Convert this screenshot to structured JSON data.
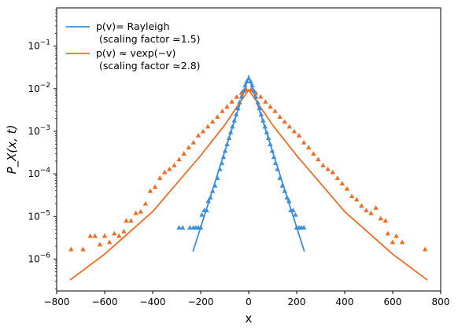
{
  "chart_data": {
    "type": "scatter",
    "xlabel": "x",
    "ylabel": "P_X(x, t)",
    "xlim": [
      -800,
      800
    ],
    "ylim_log10": [
      -6.75,
      -0.1
    ],
    "y_scale": "log",
    "grid": false,
    "legend_position": "top-left",
    "x_ticks": [
      -800,
      -600,
      -400,
      -200,
      0,
      200,
      400,
      600,
      800
    ],
    "x_tick_labels": [
      "−800",
      "−600",
      "−400",
      "−200",
      "0",
      "200",
      "400",
      "600",
      "800"
    ],
    "y_ticks_exp": [
      -6,
      -5,
      -4,
      -3,
      -2,
      -1
    ],
    "y_tick_labels": [
      {
        "base": "10",
        "exp": "−6"
      },
      {
        "base": "10",
        "exp": "−5"
      },
      {
        "base": "10",
        "exp": "−4"
      },
      {
        "base": "10",
        "exp": "−3"
      },
      {
        "base": "10",
        "exp": "−2"
      },
      {
        "base": "10",
        "exp": "−1"
      }
    ],
    "series": [
      {
        "name_line1": "p(v)= Rayleigh",
        "name_line2": "(scaling factor ≃1.5)",
        "color": "#3a8ee0",
        "fit_line": [
          [
            -232,
            1.5e-06
          ],
          [
            0,
            0.0195
          ],
          [
            232,
            1.5e-06
          ]
        ],
        "points": [
          [
            -290,
            5.5e-06
          ],
          [
            -275,
            5.5e-06
          ],
          [
            -245,
            5.5e-06
          ],
          [
            -230,
            5.5e-06
          ],
          [
            -220,
            5.5e-06
          ],
          [
            -210,
            5.5e-06
          ],
          [
            -200,
            5.5e-06
          ],
          [
            -195,
            1.1e-05
          ],
          [
            -185,
            1.4e-05
          ],
          [
            -175,
            1.4e-05
          ],
          [
            -168,
            2.3e-05
          ],
          [
            -160,
            2.8e-05
          ],
          [
            -150,
            4e-05
          ],
          [
            -140,
            5.3e-05
          ],
          [
            -130,
            8e-05
          ],
          [
            -120,
            0.00013
          ],
          [
            -112,
            0.00018
          ],
          [
            -105,
            0.00025
          ],
          [
            -98,
            0.00035
          ],
          [
            -90,
            0.0005
          ],
          [
            -82,
            0.0007
          ],
          [
            -75,
            0.00095
          ],
          [
            -68,
            0.0013
          ],
          [
            -60,
            0.0018
          ],
          [
            -52,
            0.0025
          ],
          [
            -45,
            0.0035
          ],
          [
            -38,
            0.0048
          ],
          [
            -30,
            0.0065
          ],
          [
            -22,
            0.009
          ],
          [
            -15,
            0.012
          ],
          [
            -8,
            0.015
          ],
          [
            0,
            0.0175
          ],
          [
            8,
            0.015
          ],
          [
            15,
            0.012
          ],
          [
            22,
            0.009
          ],
          [
            30,
            0.0065
          ],
          [
            38,
            0.0048
          ],
          [
            45,
            0.0035
          ],
          [
            52,
            0.0025
          ],
          [
            60,
            0.0018
          ],
          [
            68,
            0.0013
          ],
          [
            75,
            0.00095
          ],
          [
            82,
            0.0007
          ],
          [
            90,
            0.0005
          ],
          [
            98,
            0.00035
          ],
          [
            105,
            0.00025
          ],
          [
            112,
            0.00018
          ],
          [
            120,
            0.00013
          ],
          [
            130,
            8e-05
          ],
          [
            140,
            5.3e-05
          ],
          [
            150,
            4e-05
          ],
          [
            160,
            2.8e-05
          ],
          [
            168,
            2.3e-05
          ],
          [
            175,
            1.4e-05
          ],
          [
            185,
            1.4e-05
          ],
          [
            195,
            1.1e-05
          ],
          [
            200,
            5.5e-06
          ],
          [
            210,
            5.5e-06
          ],
          [
            220,
            5.5e-06
          ],
          [
            230,
            5.5e-06
          ]
        ]
      },
      {
        "name_line1": "p(v) ≈ vexp(−v)",
        "name_line2": "(scaling factor ≃2.8)",
        "color": "#f26b21",
        "fit_line": [
          [
            -745,
            3.2e-07
          ],
          [
            -600,
            1.3e-06
          ],
          [
            -400,
            1.3e-05
          ],
          [
            -200,
            0.00027
          ],
          [
            -100,
            0.0014
          ],
          [
            0,
            0.0095
          ],
          [
            100,
            0.0014
          ],
          [
            200,
            0.00027
          ],
          [
            400,
            1.3e-05
          ],
          [
            600,
            1.3e-06
          ],
          [
            745,
            3.2e-07
          ]
        ],
        "points": [
          [
            -740,
            1.7e-06
          ],
          [
            -690,
            1.7e-06
          ],
          [
            -660,
            3.5e-06
          ],
          [
            -640,
            3.5e-06
          ],
          [
            -620,
            2.2e-06
          ],
          [
            -600,
            3.5e-06
          ],
          [
            -580,
            2.5e-06
          ],
          [
            -560,
            4e-06
          ],
          [
            -540,
            3.5e-06
          ],
          [
            -520,
            4.5e-06
          ],
          [
            -510,
            8e-06
          ],
          [
            -490,
            8e-06
          ],
          [
            -470,
            1.2e-05
          ],
          [
            -450,
            1.3e-05
          ],
          [
            -430,
            2e-05
          ],
          [
            -410,
            4e-05
          ],
          [
            -390,
            5e-05
          ],
          [
            -370,
            8e-05
          ],
          [
            -350,
            0.00011
          ],
          [
            -330,
            0.00013
          ],
          [
            -310,
            0.00016
          ],
          [
            -290,
            0.00022
          ],
          [
            -270,
            0.0003
          ],
          [
            -250,
            0.00042
          ],
          [
            -230,
            0.00055
          ],
          [
            -210,
            0.0008
          ],
          [
            -190,
            0.001
          ],
          [
            -170,
            0.0013
          ],
          [
            -150,
            0.0017
          ],
          [
            -130,
            0.0022
          ],
          [
            -110,
            0.003
          ],
          [
            -90,
            0.0038
          ],
          [
            -70,
            0.005
          ],
          [
            -50,
            0.0065
          ],
          [
            -30,
            0.008
          ],
          [
            -10,
            0.0095
          ],
          [
            10,
            0.0095
          ],
          [
            30,
            0.008
          ],
          [
            50,
            0.0065
          ],
          [
            70,
            0.005
          ],
          [
            90,
            0.0038
          ],
          [
            110,
            0.003
          ],
          [
            130,
            0.0022
          ],
          [
            150,
            0.0017
          ],
          [
            170,
            0.0013
          ],
          [
            190,
            0.001
          ],
          [
            210,
            0.0008
          ],
          [
            230,
            0.00055
          ],
          [
            250,
            0.00042
          ],
          [
            270,
            0.0003
          ],
          [
            290,
            0.00022
          ],
          [
            310,
            0.00016
          ],
          [
            330,
            0.00013
          ],
          [
            350,
            0.00011
          ],
          [
            370,
            8e-05
          ],
          [
            390,
            6e-05
          ],
          [
            410,
            4.5e-05
          ],
          [
            430,
            3e-05
          ],
          [
            450,
            2.5e-05
          ],
          [
            470,
            1.8e-05
          ],
          [
            490,
            1.4e-05
          ],
          [
            510,
            1.2e-05
          ],
          [
            530,
            1.6e-05
          ],
          [
            550,
            9e-06
          ],
          [
            570,
            8e-06
          ],
          [
            580,
            4e-06
          ],
          [
            600,
            2.5e-06
          ],
          [
            615,
            3.5e-06
          ],
          [
            640,
            2.5e-06
          ],
          [
            735,
            1.7e-06
          ]
        ]
      }
    ]
  }
}
